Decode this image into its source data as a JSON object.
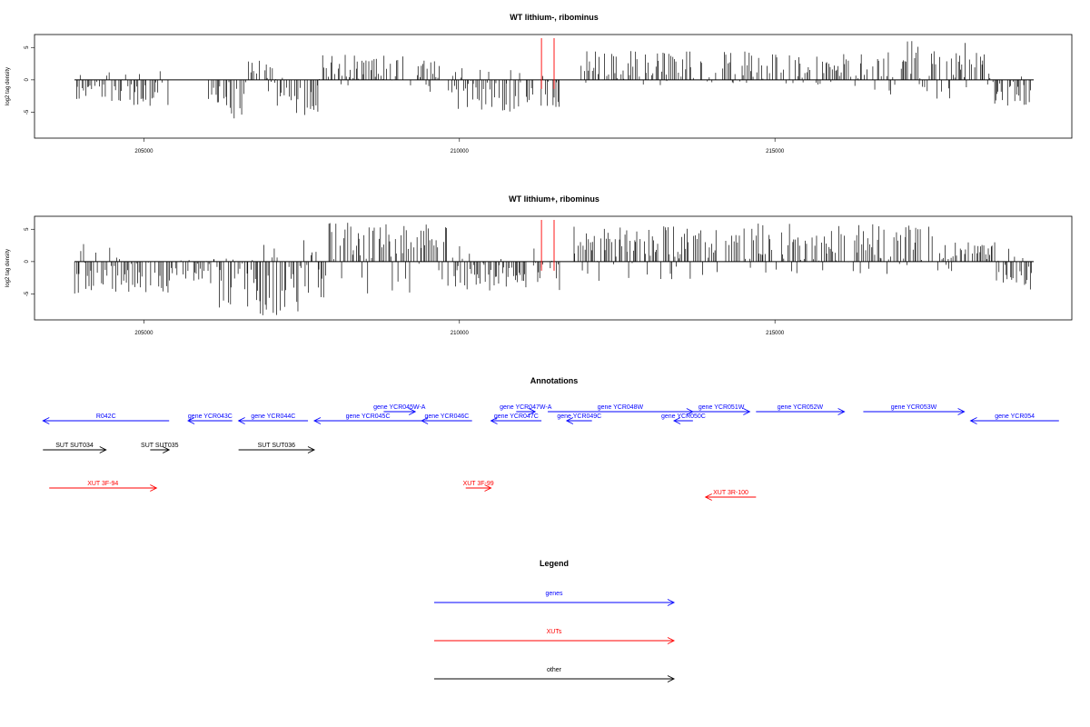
{
  "colors": {
    "gene": "#0000ff",
    "xut": "#ff0000",
    "other": "#000000",
    "marker": "#ff0000"
  },
  "chart_data": [
    {
      "type": "bar",
      "title": "WT lithium-, ribominus",
      "ylabel": "log2 tag density",
      "xlim": [
        203200,
        219500
      ],
      "ylim": [
        -9,
        7
      ],
      "xticks": [
        205000,
        210000,
        215000
      ],
      "xtick_labels": [
        "205000",
        "210000",
        "215000"
      ],
      "yticks": [
        5,
        0,
        -5
      ],
      "ytick_labels": [
        "5",
        "0",
        "-5"
      ],
      "markers": [
        211300,
        211500
      ],
      "segments": [
        {
          "start": 203900,
          "end": 204550,
          "lo": -4,
          "hi": 1.5,
          "bias": -0.8
        },
        {
          "start": 204550,
          "end": 205400,
          "lo": -4,
          "hi": 3,
          "bias": -0.3
        },
        {
          "start": 206000,
          "end": 206600,
          "lo": -6.5,
          "hi": 0,
          "bias": -1
        },
        {
          "start": 206600,
          "end": 207100,
          "lo": -2,
          "hi": 3,
          "bias": 0
        },
        {
          "start": 207100,
          "end": 207800,
          "lo": -5.5,
          "hi": 0.5,
          "bias": -1
        },
        {
          "start": 207800,
          "end": 209300,
          "lo": -1,
          "hi": 4,
          "bias": 1
        },
        {
          "start": 209300,
          "end": 209700,
          "lo": -2,
          "hi": 3,
          "bias": 0.5
        },
        {
          "start": 209800,
          "end": 211600,
          "lo": -5,
          "hi": 2,
          "bias": -0.7
        },
        {
          "start": 211900,
          "end": 213700,
          "lo": -1,
          "hi": 4.5,
          "bias": 1
        },
        {
          "start": 213700,
          "end": 214600,
          "lo": -0.5,
          "hi": 4.5,
          "bias": 1
        },
        {
          "start": 214600,
          "end": 216500,
          "lo": -1,
          "hi": 4,
          "bias": 1
        },
        {
          "start": 216500,
          "end": 218400,
          "lo": -3,
          "hi": 6,
          "bias": 1
        },
        {
          "start": 218400,
          "end": 219100,
          "lo": -4,
          "hi": 1,
          "bias": -1
        }
      ]
    },
    {
      "type": "bar",
      "title": "WT lithium+, ribominus",
      "ylabel": "log2 tag density",
      "xlim": [
        203200,
        219500
      ],
      "ylim": [
        -9,
        7
      ],
      "xticks": [
        205000,
        210000,
        215000
      ],
      "xtick_labels": [
        "205000",
        "210000",
        "215000"
      ],
      "yticks": [
        5,
        0,
        -5
      ],
      "ytick_labels": [
        "5",
        "0",
        "-5"
      ],
      "markers": [
        211300,
        211500
      ],
      "segments": [
        {
          "start": 203900,
          "end": 205400,
          "lo": -5,
          "hi": 3.5,
          "bias": -0.5
        },
        {
          "start": 205400,
          "end": 206000,
          "lo": -3,
          "hi": 2,
          "bias": -0.3
        },
        {
          "start": 206000,
          "end": 206800,
          "lo": -8,
          "hi": 0.5,
          "bias": -1
        },
        {
          "start": 206800,
          "end": 207900,
          "lo": -8.5,
          "hi": 3.5,
          "bias": -0.7
        },
        {
          "start": 207900,
          "end": 209900,
          "lo": -5,
          "hi": 6,
          "bias": 0.6
        },
        {
          "start": 209900,
          "end": 211600,
          "lo": -4.5,
          "hi": 3,
          "bias": -0.3
        },
        {
          "start": 211800,
          "end": 214500,
          "lo": -3,
          "hi": 5.5,
          "bias": 1
        },
        {
          "start": 214500,
          "end": 217600,
          "lo": -2,
          "hi": 6,
          "bias": 1
        },
        {
          "start": 217600,
          "end": 218500,
          "lo": -2,
          "hi": 3,
          "bias": 0.5
        },
        {
          "start": 218500,
          "end": 219100,
          "lo": -4.5,
          "hi": 2,
          "bias": -1
        }
      ]
    }
  ],
  "annotations": {
    "title": "Annotations",
    "features": [
      {
        "label": "gene YCR042C",
        "display": "R042C",
        "type": "gene",
        "start": 203400,
        "end": 205400,
        "strand": "-",
        "row": 1
      },
      {
        "label": "gene YCR043C",
        "type": "gene",
        "start": 205700,
        "end": 206400,
        "strand": "-",
        "row": 1
      },
      {
        "label": "gene YCR044C",
        "type": "gene",
        "start": 206500,
        "end": 207600,
        "strand": "-",
        "row": 1
      },
      {
        "label": "gene YCR045W-A",
        "type": "gene",
        "start": 208800,
        "end": 209300,
        "strand": "+",
        "row": 0
      },
      {
        "label": "gene YCR045C",
        "type": "gene",
        "start": 207700,
        "end": 209400,
        "strand": "-",
        "row": 1
      },
      {
        "label": "gene YCR046C",
        "type": "gene",
        "start": 209400,
        "end": 210200,
        "strand": "-",
        "row": 1
      },
      {
        "label": "gene YCR047W-A",
        "type": "gene",
        "start": 210900,
        "end": 211200,
        "strand": "+",
        "row": 0
      },
      {
        "label": "gene YCR047C",
        "type": "gene",
        "start": 210500,
        "end": 211300,
        "strand": "-",
        "row": 1
      },
      {
        "label": "gene YCR049C",
        "type": "gene",
        "start": 211700,
        "end": 212100,
        "strand": "-",
        "row": 1
      },
      {
        "label": "gene YCR048W",
        "type": "gene",
        "start": 211400,
        "end": 213700,
        "strand": "+",
        "row": 0
      },
      {
        "label": "gene YCR050C",
        "type": "gene",
        "start": 213400,
        "end": 213700,
        "strand": "-",
        "row": 1
      },
      {
        "label": "gene YCR051W",
        "type": "gene",
        "start": 213700,
        "end": 214600,
        "strand": "+",
        "row": 0
      },
      {
        "label": "gene YCR052W",
        "type": "gene",
        "start": 214700,
        "end": 216100,
        "strand": "+",
        "row": 0
      },
      {
        "label": "gene YCR053W",
        "type": "gene",
        "start": 216400,
        "end": 218000,
        "strand": "+",
        "row": 0
      },
      {
        "label": "gene YCR054",
        "type": "gene",
        "start": 218100,
        "end": 219500,
        "strand": "-",
        "row": 1
      },
      {
        "label": "SUT SUT034",
        "display": "SUT SUT034",
        "type": "other",
        "start": 203400,
        "end": 204400,
        "strand": "+",
        "row": 2
      },
      {
        "label": "SUT SUT035",
        "type": "other",
        "start": 205100,
        "end": 205400,
        "strand": "+",
        "row": 2
      },
      {
        "label": "SUT SUT036",
        "type": "other",
        "start": 206500,
        "end": 207700,
        "strand": "+",
        "row": 2
      },
      {
        "label": "XUT 3F-94",
        "type": "xut",
        "start": 203500,
        "end": 205200,
        "strand": "+",
        "row": 3
      },
      {
        "label": "XUT 3F-99",
        "type": "xut",
        "start": 210100,
        "end": 210500,
        "strand": "+",
        "row": 3
      },
      {
        "label": "XUT 3R-100",
        "type": "xut",
        "start": 213900,
        "end": 214700,
        "strand": "-",
        "row": 4
      }
    ]
  },
  "legend": {
    "title": "Legend",
    "items": [
      {
        "label": "genes",
        "type": "gene"
      },
      {
        "label": "XUTs",
        "type": "xut"
      },
      {
        "label": "other",
        "type": "other"
      }
    ]
  }
}
